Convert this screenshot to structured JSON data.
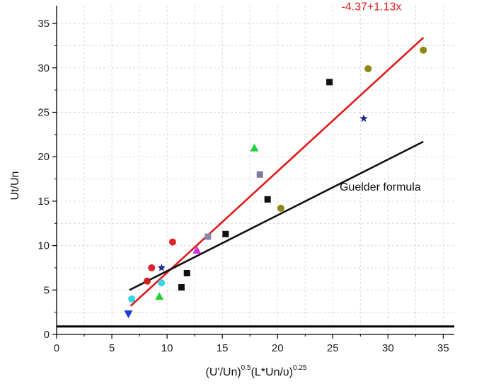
{
  "chart_data": {
    "type": "scatter",
    "title": "",
    "xlabel": {
      "parts": [
        "(U'/Un)",
        "0.5",
        "(L*Un/υ)",
        "0.25"
      ]
    },
    "ylabel": "Ut/Un",
    "xlim": [
      0,
      36
    ],
    "ylim": [
      0,
      37
    ],
    "xticks": [
      0,
      5,
      10,
      15,
      20,
      25,
      30,
      35
    ],
    "yticks": [
      0,
      5,
      10,
      15,
      20,
      25,
      30,
      35
    ],
    "grid": true,
    "legend": "none",
    "points": [
      {
        "x": 6.5,
        "y": 2.3,
        "marker": "triangle-down",
        "color": "#1f3bd6"
      },
      {
        "x": 6.8,
        "y": 4.0,
        "marker": "circle",
        "color": "#39d8e8"
      },
      {
        "x": 8.2,
        "y": 6.0,
        "marker": "circle",
        "color": "#d21e1e"
      },
      {
        "x": 8.6,
        "y": 7.5,
        "marker": "circle",
        "color": "#e0202a"
      },
      {
        "x": 9.3,
        "y": 4.3,
        "marker": "triangle",
        "color": "#22d13a"
      },
      {
        "x": 9.5,
        "y": 7.5,
        "marker": "star",
        "color": "#1b2a8a"
      },
      {
        "x": 9.5,
        "y": 5.8,
        "marker": "circle",
        "color": "#39d8e8"
      },
      {
        "x": 10.5,
        "y": 10.4,
        "marker": "circle",
        "color": "#e0202a"
      },
      {
        "x": 11.3,
        "y": 5.3,
        "marker": "square",
        "color": "#111111"
      },
      {
        "x": 11.8,
        "y": 6.9,
        "marker": "square",
        "color": "#111111"
      },
      {
        "x": 12.7,
        "y": 9.5,
        "marker": "triangle",
        "color": "#d12fd8"
      },
      {
        "x": 13.7,
        "y": 11.0,
        "marker": "square",
        "color": "#8a8aa8"
      },
      {
        "x": 15.3,
        "y": 11.3,
        "marker": "square",
        "color": "#111111"
      },
      {
        "x": 17.9,
        "y": 21.0,
        "marker": "triangle",
        "color": "#22d13a"
      },
      {
        "x": 18.4,
        "y": 18.0,
        "marker": "square",
        "color": "#7a7aa0"
      },
      {
        "x": 19.1,
        "y": 15.2,
        "marker": "square",
        "color": "#111111"
      },
      {
        "x": 20.3,
        "y": 14.2,
        "marker": "circle",
        "color": "#8a8a10"
      },
      {
        "x": 24.7,
        "y": 28.4,
        "marker": "square",
        "color": "#111111"
      },
      {
        "x": 27.8,
        "y": 24.3,
        "marker": "star",
        "color": "#1b2a8a"
      },
      {
        "x": 28.2,
        "y": 29.9,
        "marker": "circle",
        "color": "#8a8a10"
      },
      {
        "x": 33.2,
        "y": 32.0,
        "marker": "circle",
        "color": "#8a8a10"
      }
    ],
    "lines": [
      {
        "name": "-4.37+1.13x",
        "x": [
          6.7,
          33.2
        ],
        "y": [
          3.2,
          33.4
        ],
        "color": "#e01b1b"
      },
      {
        "name": "Guelder formula",
        "x": [
          6.6,
          33.2
        ],
        "y": [
          5.0,
          21.7
        ],
        "color": "#111111"
      }
    ],
    "reference_line": {
      "y": 0.9,
      "color": "#000000"
    },
    "annotations": [
      {
        "text": "-4.37+1.13x",
        "x": 28.5,
        "y": 36.5,
        "color": "#e01b1b"
      },
      {
        "text": "Guelder formula",
        "x": 29.3,
        "y": 16.2,
        "color": "#111111"
      }
    ]
  }
}
